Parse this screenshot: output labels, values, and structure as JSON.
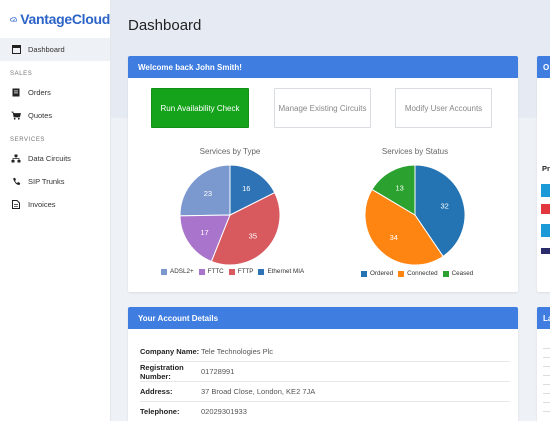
{
  "brand": {
    "name": "VantageCloud"
  },
  "sidebar": {
    "dashboard": "Dashboard",
    "sections": [
      {
        "title": "SALES",
        "items": [
          {
            "label": "Orders",
            "icon": "orders-icon"
          },
          {
            "label": "Quotes",
            "icon": "cart-icon"
          }
        ]
      },
      {
        "title": "SERVICES",
        "items": [
          {
            "label": "Data Circuits",
            "icon": "network-icon"
          },
          {
            "label": "SIP Trunks",
            "icon": "phone-icon"
          },
          {
            "label": "Invoices",
            "icon": "invoice-icon"
          }
        ]
      }
    ]
  },
  "page": {
    "title": "Dashboard"
  },
  "welcome": {
    "title": "Welcome back John Smith!",
    "buttons": {
      "check": "Run Availability Check",
      "manage": "Manage Existing Circuits",
      "modify": "Modify User Accounts"
    }
  },
  "chart_data": [
    {
      "type": "pie",
      "title": "Services by Type",
      "categories": [
        "ADSL2+",
        "FTTC",
        "FTTP",
        "Ethernet MIA"
      ],
      "values": [
        23,
        17,
        35,
        16
      ],
      "colors": [
        "#7b98cf",
        "#a874cc",
        "#d85a5e",
        "#2d73b6"
      ],
      "legend": "bottom"
    },
    {
      "type": "pie",
      "title": "Services by Status",
      "categories": [
        "Ordered",
        "Connected",
        "Ceased"
      ],
      "values": [
        32,
        34,
        13
      ],
      "colors": [
        "#2473b3",
        "#ff8512",
        "#2ba12f"
      ],
      "legend": "bottom"
    }
  ],
  "account": {
    "title": "Your Account Details",
    "rows": [
      {
        "key": "Company Name:",
        "value": "Tele Technologies Plc"
      },
      {
        "key": "Registration Number:",
        "value": "01728991"
      },
      {
        "key": "Address:",
        "value": "37 Broad Close, London, KE2 7JA"
      },
      {
        "key": "Telephone:",
        "value": "02029301933"
      }
    ]
  },
  "right_panels": {
    "top_head": "O",
    "bottom_head": "La",
    "label_pr": "Pr"
  }
}
